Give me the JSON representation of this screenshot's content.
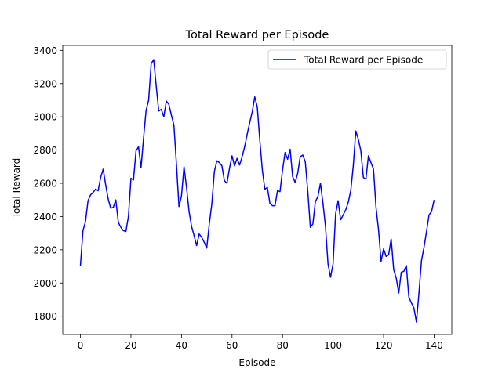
{
  "chart_data": {
    "type": "line",
    "title": "Total Reward per Episode",
    "xlabel": "Episode",
    "ylabel": "Total Reward",
    "xlim": [
      -7,
      147
    ],
    "ylim": [
      1690,
      3430
    ],
    "xticks": [
      0,
      20,
      40,
      60,
      80,
      100,
      120,
      140
    ],
    "yticks": [
      1800,
      2000,
      2200,
      2400,
      2600,
      2800,
      3000,
      3200,
      3400
    ],
    "grid": false,
    "legend": "top-right",
    "series": [
      {
        "name": "Total Reward per Episode",
        "color": "#0000ff",
        "values": [
          2105,
          2315,
          2370,
          2495,
          2530,
          2545,
          2565,
          2555,
          2635,
          2685,
          2590,
          2505,
          2450,
          2455,
          2500,
          2365,
          2335,
          2315,
          2310,
          2400,
          2630,
          2620,
          2795,
          2820,
          2695,
          2875,
          3040,
          3100,
          3320,
          3345,
          3185,
          3035,
          3045,
          3000,
          3095,
          3075,
          3010,
          2950,
          2715,
          2460,
          2525,
          2700,
          2575,
          2430,
          2340,
          2285,
          2225,
          2295,
          2275,
          2245,
          2210,
          2355,
          2475,
          2670,
          2735,
          2725,
          2705,
          2615,
          2600,
          2690,
          2765,
          2705,
          2750,
          2710,
          2760,
          2820,
          2895,
          2965,
          3030,
          3120,
          3060,
          2860,
          2680,
          2565,
          2575,
          2480,
          2465,
          2465,
          2555,
          2550,
          2680,
          2785,
          2745,
          2805,
          2640,
          2605,
          2660,
          2760,
          2770,
          2730,
          2550,
          2335,
          2355,
          2490,
          2520,
          2600,
          2480,
          2340,
          2115,
          2035,
          2115,
          2415,
          2495,
          2380,
          2410,
          2440,
          2485,
          2555,
          2705,
          2915,
          2865,
          2795,
          2635,
          2625,
          2765,
          2725,
          2685,
          2455,
          2320,
          2130,
          2205,
          2160,
          2170,
          2265,
          2080,
          2030,
          1940,
          2065,
          2070,
          2105,
          1915,
          1880,
          1850,
          1765,
          1940,
          2135,
          2215,
          2310,
          2410,
          2430,
          2500
        ]
      }
    ]
  }
}
